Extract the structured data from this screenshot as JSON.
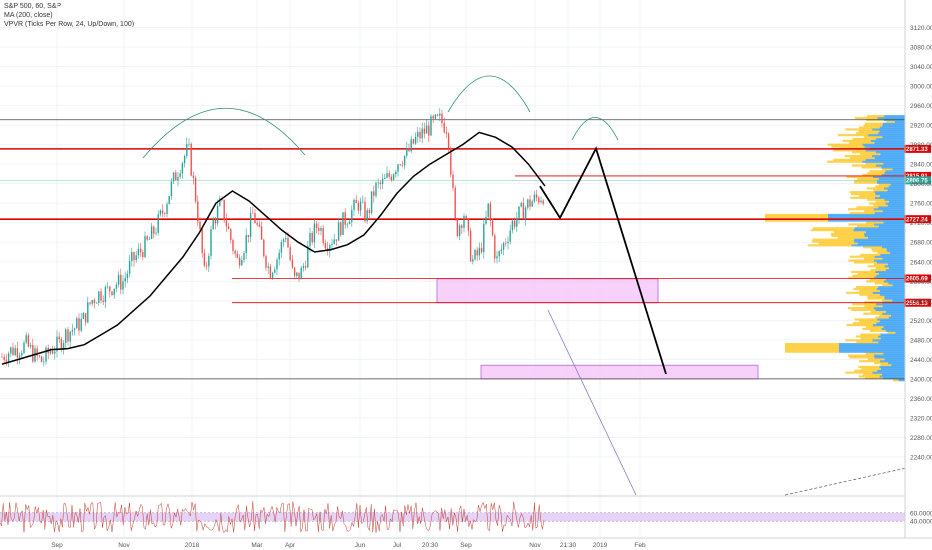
{
  "header": {
    "title": "S&P 500, 60, S&P",
    "ma": "MA (200, close)",
    "vpvr": "VPVR (Ticks Per Row, 24, Up/Down, 100)"
  },
  "colors": {
    "up_candle": "#26a69a",
    "down_candle": "#ef5350",
    "ma_line": "#000000",
    "level_red": "#e00000",
    "level_gray": "#444444",
    "vpvr_up": "#2196f3",
    "vpvr_down": "#ffc107",
    "zone_fill": "#f6c9f8",
    "arc": "#2f8f7a",
    "rsi_fill": "#e6d3f5"
  },
  "chart_data": {
    "type": "line",
    "title": "S&P 500, 60, S&P",
    "y_axis": {
      "range": [
        2160,
        3160
      ],
      "ticks": [
        2240,
        2280,
        2320,
        2360,
        2400,
        2440,
        2480,
        2520,
        2560,
        2600,
        2640,
        2680,
        2720,
        2760,
        2800,
        2840,
        2880,
        2920,
        2960,
        3000,
        3040,
        3080,
        3120
      ]
    },
    "x_axis": {
      "ticks": [
        "Sep",
        "Nov",
        "2018",
        "Mar",
        "Apr",
        "Jun",
        "Jul",
        "20:30",
        "Sep",
        "Nov",
        "21:30",
        "2019",
        "Feb"
      ]
    },
    "price_path": [
      2445,
      2458,
      2462,
      2470,
      2448,
      2435,
      2460,
      2470,
      2495,
      2505,
      2520,
      2560,
      2575,
      2580,
      2595,
      2600,
      2640,
      2660,
      2680,
      2710,
      2750,
      2800,
      2840,
      2872,
      2760,
      2610,
      2720,
      2760,
      2700,
      2640,
      2680,
      2740,
      2680,
      2620,
      2650,
      2700,
      2600,
      2620,
      2680,
      2720,
      2680,
      2690,
      2720,
      2740,
      2760,
      2730,
      2790,
      2800,
      2820,
      2850,
      2860,
      2890,
      2905,
      2920,
      2930,
      2915,
      2700,
      2740,
      2640,
      2660,
      2750,
      2640,
      2680,
      2720,
      2740,
      2760,
      2770,
      2780
    ],
    "ma_200": [
      2430,
      2440,
      2450,
      2460,
      2462,
      2470,
      2490,
      2510,
      2540,
      2570,
      2610,
      2650,
      2700,
      2760,
      2785,
      2765,
      2735,
      2705,
      2680,
      2660,
      2665,
      2675,
      2695,
      2735,
      2780,
      2815,
      2840,
      2860,
      2880,
      2905,
      2895,
      2875,
      2840,
      2795
    ],
    "projection_path": [
      2795,
      2730,
      2872,
      2410
    ],
    "levels": [
      {
        "value": 2931,
        "label": "",
        "style": "gray"
      },
      {
        "value": 2871.33,
        "label": "2871.33",
        "style": "red"
      },
      {
        "value": 2815.91,
        "label": "2815.91",
        "style": "red"
      },
      {
        "value": 2806.75,
        "label": "2806.75",
        "style": "teal"
      },
      {
        "value": 2727.24,
        "label": "2727.24",
        "style": "red"
      },
      {
        "value": 2605.69,
        "label": "2605.69",
        "style": "red"
      },
      {
        "value": 2556.13,
        "label": "2556.13",
        "style": "red"
      },
      {
        "value": 2400,
        "label": "",
        "style": "gray"
      }
    ],
    "zones": [
      {
        "from": 2556,
        "to": 2605
      },
      {
        "from": 2400,
        "to": 2428
      }
    ],
    "rsi": {
      "levels": [
        60,
        40
      ],
      "level_labels": [
        "60.0000",
        "40.0000"
      ]
    }
  }
}
